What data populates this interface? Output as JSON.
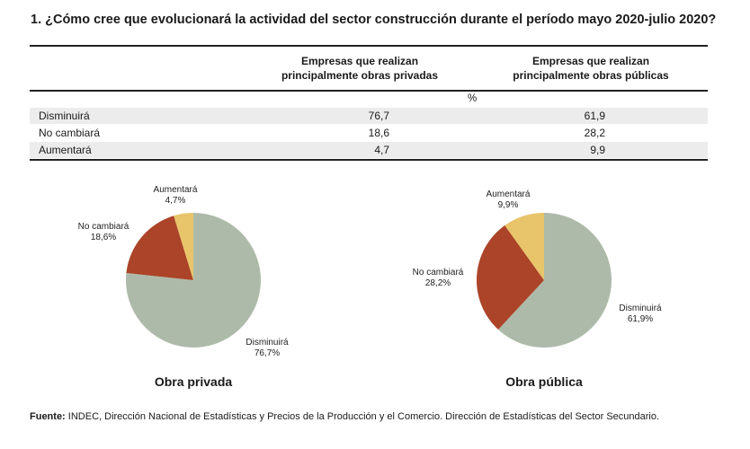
{
  "title": "1.  ¿Cómo cree que evolucionará la actividad del sector construcción durante el período mayo 2020-julio 2020?",
  "table": {
    "columns": [
      {
        "line1": "Empresas que realizan",
        "line2": "principalmente obras privadas"
      },
      {
        "line1": "Empresas que realizan",
        "line2": "principalmente obras públicas"
      }
    ],
    "unit": "%",
    "rows": [
      {
        "label": "Disminuirá",
        "privadas": "76,7",
        "publicas": "61,9"
      },
      {
        "label": "No cambiará",
        "privadas": "18,6",
        "publicas": "28,2"
      },
      {
        "label": "Aumentará",
        "privadas": "4,7",
        "publicas": "9,9"
      }
    ]
  },
  "colors": {
    "disminuira": "#adbaa9",
    "no_cambiara": "#ab4428",
    "aumentara": "#e8c46a"
  },
  "chart_data": [
    {
      "type": "pie",
      "title": "Obra privada",
      "categories": [
        "Disminuirá",
        "No cambiará",
        "Aumentará"
      ],
      "values": [
        76.7,
        18.6,
        4.7
      ],
      "labels": [
        "76,7%",
        "18,6%",
        "4,7%"
      ]
    },
    {
      "type": "pie",
      "title": "Obra pública",
      "categories": [
        "Disminuirá",
        "No cambiará",
        "Aumentará"
      ],
      "values": [
        61.9,
        28.2,
        9.9
      ],
      "labels": [
        "61,9%",
        "28,2%",
        "9,9%"
      ]
    }
  ],
  "source": {
    "prefix": "Fuente:",
    "text": " INDEC, Dirección Nacional de Estadísticas y Precios de la Producción y el Comercio. Dirección de Estadísticas del Sector Secundario."
  }
}
